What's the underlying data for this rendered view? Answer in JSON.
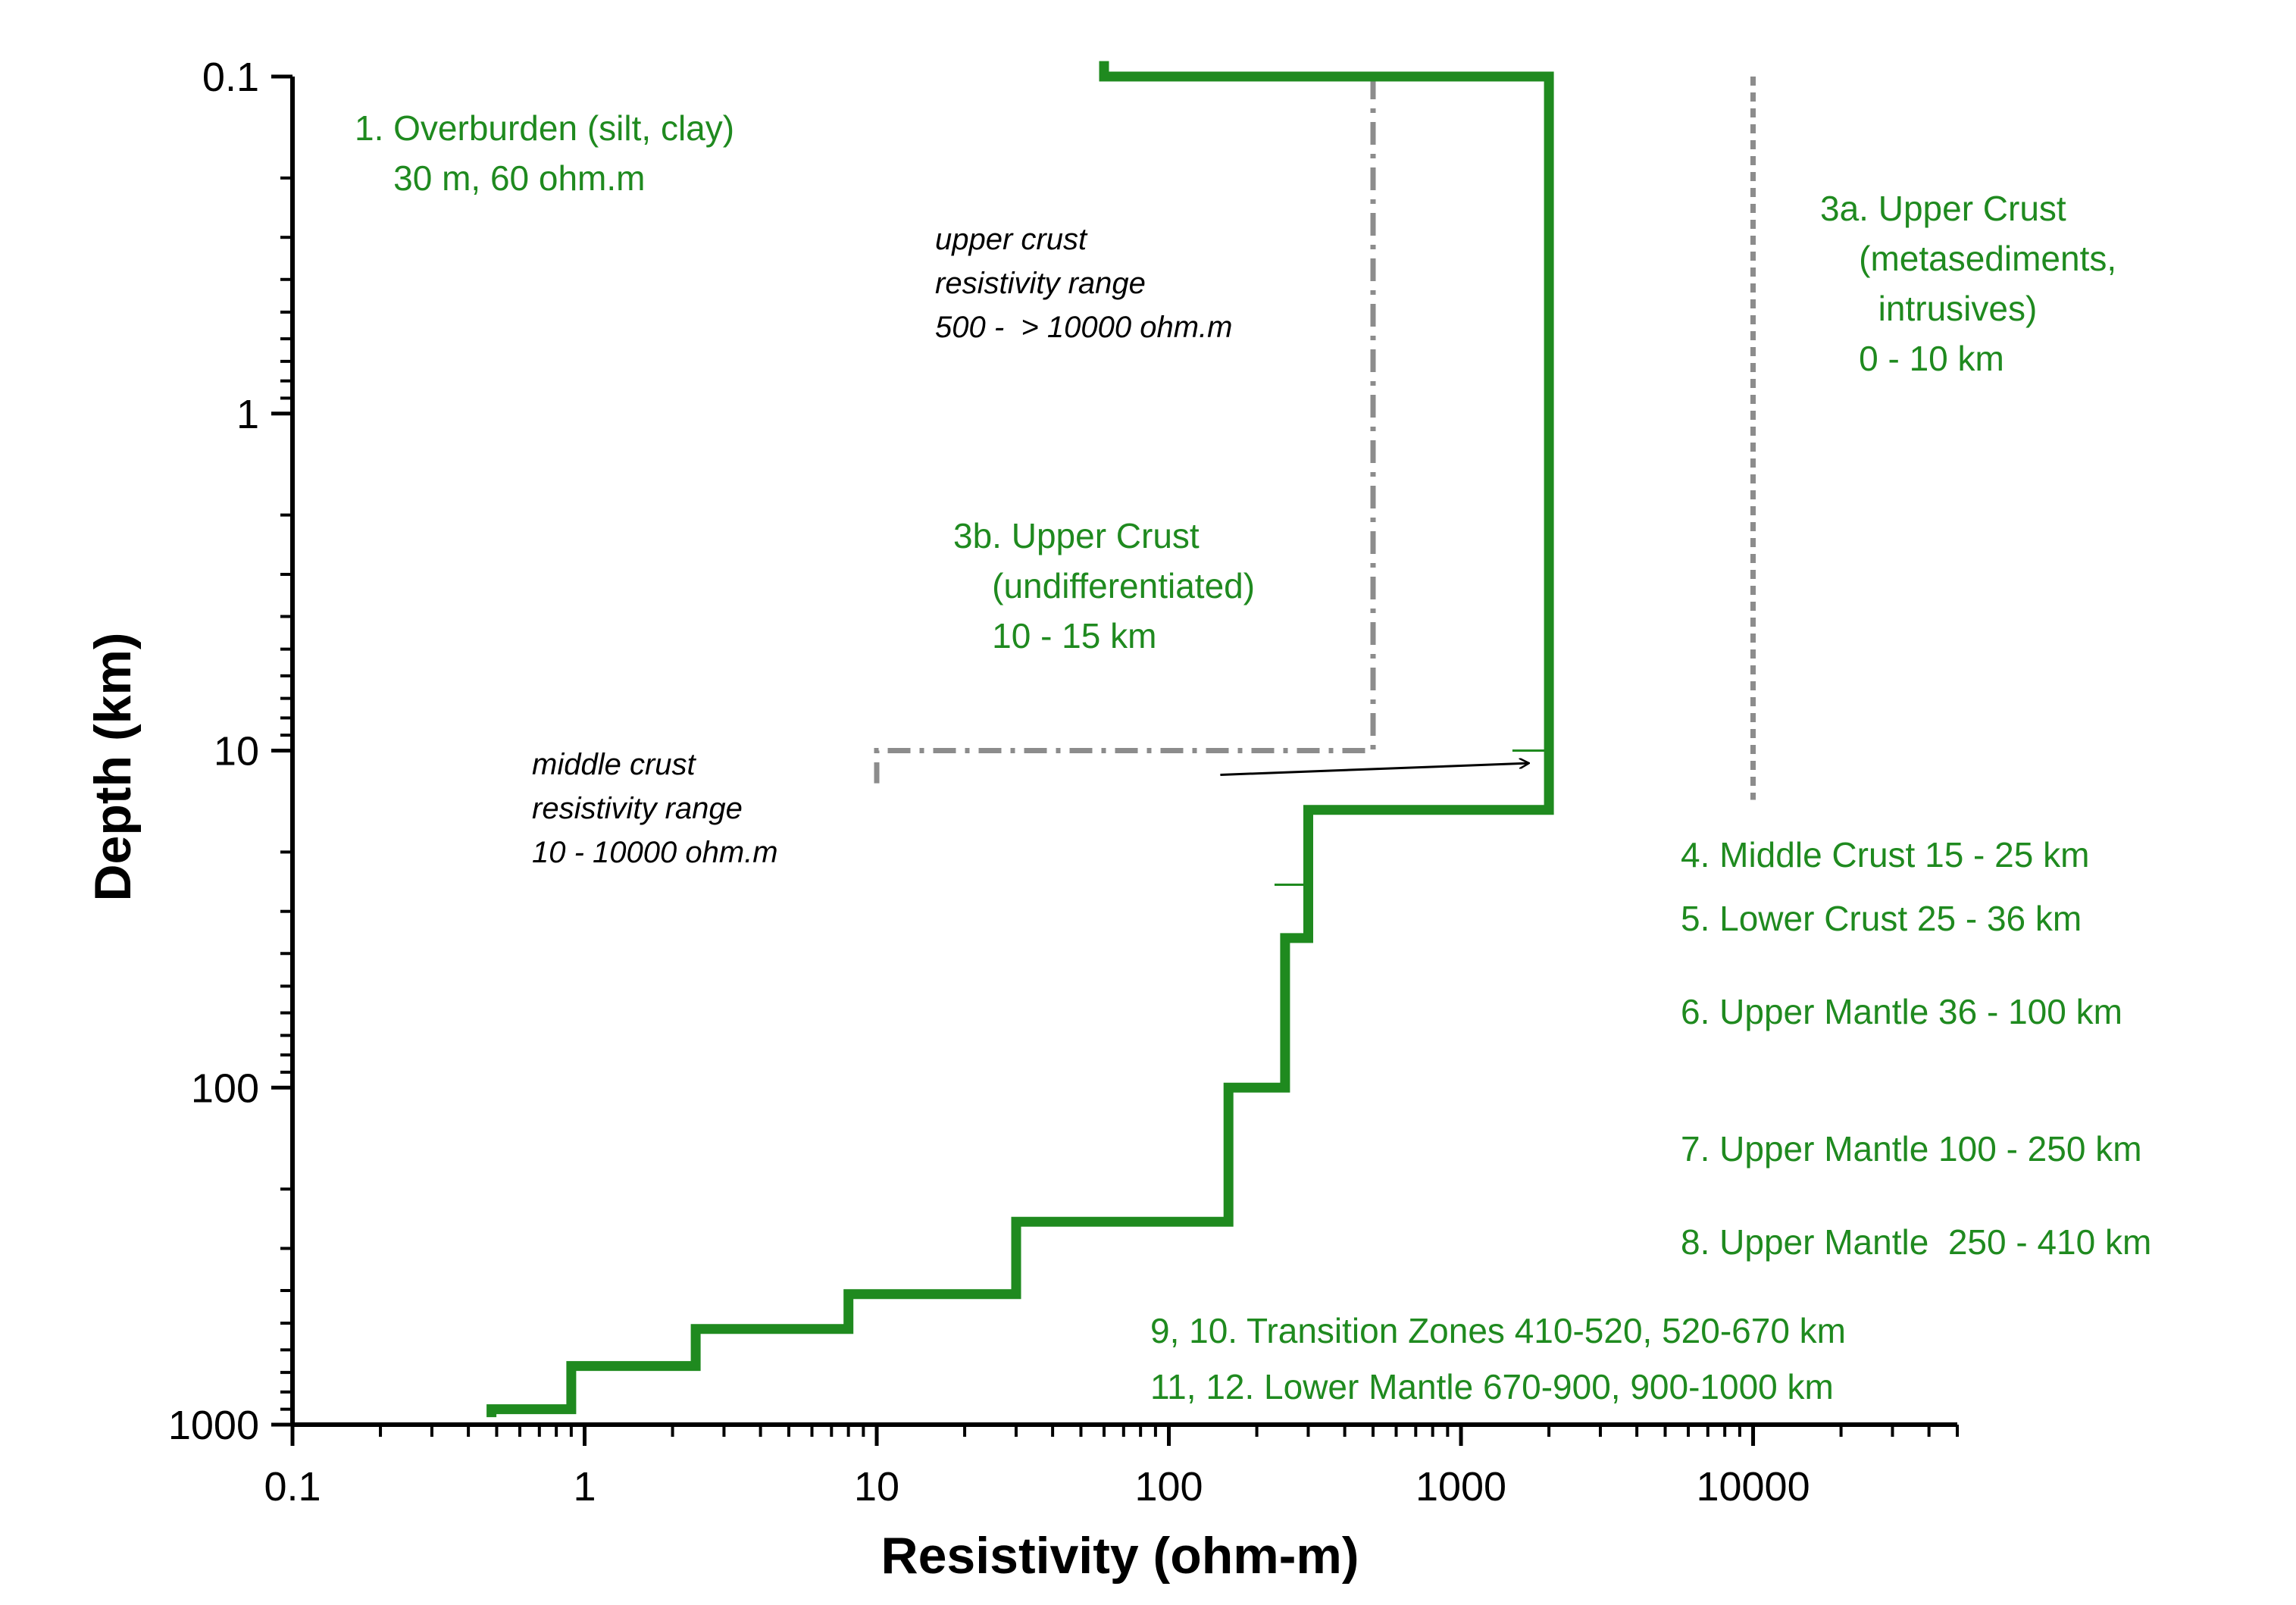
{
  "chart_data": {
    "type": "line",
    "xlabel": "Resistivity (ohm-m)",
    "ylabel": "Depth (km)",
    "xscale": "log",
    "yscale": "log",
    "xlim": [
      0.1,
      50000
    ],
    "ylim": [
      0.1,
      1000
    ],
    "y_inverted": true,
    "x_ticks": [
      0.1,
      1,
      10,
      100,
      1000,
      10000
    ],
    "x_tick_labels": [
      "0.1",
      "1",
      "10",
      "100",
      "1000",
      "10000"
    ],
    "y_ticks": [
      0.1,
      1,
      10,
      100,
      1000
    ],
    "y_tick_labels": [
      "0.1",
      "1",
      "10",
      "100",
      "1000"
    ],
    "grid": false,
    "colors": {
      "model": "#1f8a1f",
      "range_lines": "#8c8c8c",
      "notes_green": "#1f8a1f",
      "notes_gray": "#000000",
      "axis": "#000000"
    },
    "series": [
      {
        "style": "solid-step",
        "points": [
          [
            60,
            0.09
          ],
          [
            60,
            0.1
          ],
          [
            2000,
            0.1
          ],
          [
            2000,
            15
          ],
          [
            300,
            15
          ],
          [
            300,
            36
          ],
          [
            250,
            36
          ],
          [
            250,
            100
          ],
          [
            160,
            100
          ],
          [
            160,
            250
          ],
          [
            30,
            250
          ],
          [
            30,
            410
          ],
          [
            8,
            410
          ],
          [
            8,
            520
          ],
          [
            2.4,
            520
          ],
          [
            2.4,
            670
          ],
          [
            0.9,
            670
          ],
          [
            0.9,
            900
          ],
          [
            0.48,
            900
          ],
          [
            0.48,
            950
          ]
        ]
      },
      {
        "style": "dash-dot",
        "points": [
          [
            500,
            0.1
          ],
          [
            500,
            10
          ],
          [
            10,
            10
          ],
          [
            10,
            12.5
          ]
        ]
      },
      {
        "style": "dotted",
        "points": [
          [
            10000,
            0.1
          ],
          [
            10000,
            14
          ]
        ]
      }
    ],
    "tick_marks": [
      {
        "x": [
          1500,
          2000
        ],
        "y": 10
      },
      {
        "x": [
          230,
          300
        ],
        "y": 25
      }
    ],
    "arrow": {
      "from": [
        150,
        11.8
      ],
      "to": [
        1700,
        10.9
      ]
    },
    "annotations_green": [
      {
        "lines": [
          "1. Overburden (silt, clay)",
          "    30 m, 60 ohm.m"
        ]
      },
      {
        "lines": [
          "3a. Upper Crust",
          "    (metasediments,",
          "      intrusives)",
          "    0 - 10 km"
        ]
      },
      {
        "lines": [
          "3b. Upper Crust",
          "    (undifferentiated)",
          "    10 - 15 km"
        ]
      },
      {
        "lines": [
          "4. Middle Crust 15 - 25 km"
        ]
      },
      {
        "lines": [
          "5. Lower Crust 25 - 36 km"
        ]
      },
      {
        "lines": [
          "6. Upper Mantle 36 - 100 km"
        ]
      },
      {
        "lines": [
          "7. Upper Mantle 100 - 250 km"
        ]
      },
      {
        "lines": [
          "8. Upper Mantle  250 - 410 km"
        ]
      },
      {
        "lines": [
          "9, 10. Transition Zones 410-520, 520-670 km"
        ]
      },
      {
        "lines": [
          "11, 12. Lower Mantle 670-900, 900-1000 km"
        ]
      }
    ],
    "annotations_gray": [
      {
        "lines": [
          "upper crust",
          "resistivity range",
          "500 -  > 10000 ohm.m"
        ]
      },
      {
        "lines": [
          "middle crust",
          "resistivity range",
          "10 - 10000 ohm.m"
        ]
      }
    ]
  }
}
